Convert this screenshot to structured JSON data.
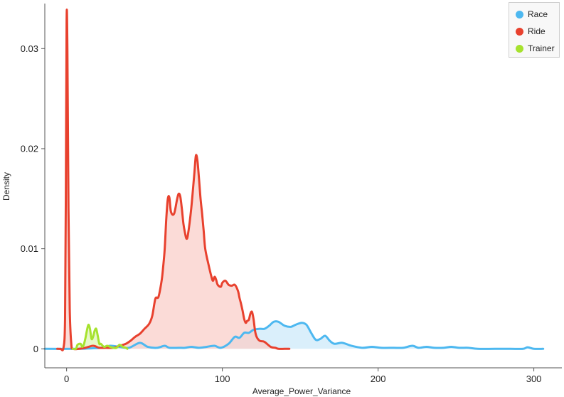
{
  "chart_data": {
    "type": "area",
    "xlabel": "Average_Power_Variance",
    "ylabel": "Density",
    "xlim": [
      -14,
      318
    ],
    "ylim": [
      -0.0019,
      0.0345
    ],
    "xticks": [
      0,
      100,
      200,
      300
    ],
    "yticks": [
      0,
      0.01,
      0.02,
      0.03
    ],
    "ytick_labels": [
      "0",
      "0.01",
      "0.02",
      "0.03"
    ],
    "legend_position": "top-right",
    "series": [
      {
        "name": "Race",
        "color": "#4db8f0",
        "fill": "#cdeaf9",
        "points": [
          [
            -14,
            0
          ],
          [
            8,
            0
          ],
          [
            16,
            5e-05
          ],
          [
            22,
            0.0001
          ],
          [
            28,
            0.0003
          ],
          [
            34,
            0.0002
          ],
          [
            40,
            0.0001
          ],
          [
            47,
            0.0006
          ],
          [
            52,
            0.0002
          ],
          [
            58,
            0.0001
          ],
          [
            63,
            0.0003
          ],
          [
            66,
            0.0001
          ],
          [
            72,
            0.0001
          ],
          [
            76,
            0.0001
          ],
          [
            80,
            0.0002
          ],
          [
            85,
            0.0001
          ],
          [
            90,
            0.0002
          ],
          [
            95,
            0.0003
          ],
          [
            99,
            0.0001
          ],
          [
            104,
            0.0005
          ],
          [
            108,
            0.0012
          ],
          [
            111,
            0.0011
          ],
          [
            114,
            0.0016
          ],
          [
            117,
            0.0016
          ],
          [
            120,
            0.0019
          ],
          [
            124,
            0.002
          ],
          [
            127,
            0.002
          ],
          [
            130,
            0.0023
          ],
          [
            133,
            0.0027
          ],
          [
            136,
            0.0027
          ],
          [
            140,
            0.0023
          ],
          [
            144,
            0.0022
          ],
          [
            147,
            0.0024
          ],
          [
            151,
            0.0026
          ],
          [
            154,
            0.0024
          ],
          [
            157,
            0.0016
          ],
          [
            160,
            0.0009
          ],
          [
            163,
            0.001
          ],
          [
            166,
            0.0013
          ],
          [
            169,
            0.0008
          ],
          [
            172,
            0.0005
          ],
          [
            177,
            0.0006
          ],
          [
            183,
            0.0003
          ],
          [
            190,
            0.0001
          ],
          [
            196,
            0.0002
          ],
          [
            202,
            0.0001
          ],
          [
            210,
            0.0001
          ],
          [
            216,
            0.0001
          ],
          [
            222,
            0.0003
          ],
          [
            226,
            0.0001
          ],
          [
            231,
            0.0002
          ],
          [
            236,
            0.0001
          ],
          [
            242,
            0.0001
          ],
          [
            247,
            0.0002
          ],
          [
            252,
            0.0001
          ],
          [
            258,
            0.0001
          ],
          [
            264,
            0
          ],
          [
            275,
            0
          ],
          [
            285,
            0
          ],
          [
            293,
            0
          ],
          [
            296,
            0.00015
          ],
          [
            300,
            0
          ],
          [
            306,
            0
          ]
        ]
      },
      {
        "name": "Ride",
        "color": "#e8412e",
        "fill": "#f9cfc9",
        "points": [
          [
            -6,
            0
          ],
          [
            -4,
            0
          ],
          [
            -2,
            0.0001
          ],
          [
            -1,
            0.003
          ],
          [
            -0.5,
            0.015
          ],
          [
            0,
            0.0328
          ],
          [
            0.5,
            0.03
          ],
          [
            1.2,
            0.014
          ],
          [
            2,
            0.004
          ],
          [
            3,
            0.0005
          ],
          [
            4,
            0
          ],
          [
            8,
            0
          ],
          [
            12,
            0.0001
          ],
          [
            17,
            0.0003
          ],
          [
            21,
            0.0001
          ],
          [
            25,
            0.0001
          ],
          [
            30,
            0.0001
          ],
          [
            34,
            0.0003
          ],
          [
            38,
            0.0005
          ],
          [
            41,
            0.0008
          ],
          [
            44,
            0.0012
          ],
          [
            47,
            0.0015
          ],
          [
            50,
            0.002
          ],
          [
            53,
            0.0025
          ],
          [
            55,
            0.0033
          ],
          [
            57,
            0.005
          ],
          [
            59,
            0.0052
          ],
          [
            61,
            0.0068
          ],
          [
            62,
            0.0082
          ],
          [
            63,
            0.01
          ],
          [
            64,
            0.013
          ],
          [
            65,
            0.015
          ],
          [
            66,
            0.0151
          ],
          [
            67,
            0.0137
          ],
          [
            69,
            0.0135
          ],
          [
            71,
            0.015
          ],
          [
            72,
            0.0155
          ],
          [
            73,
            0.0152
          ],
          [
            74,
            0.014
          ],
          [
            75,
            0.0125
          ],
          [
            76,
            0.0116
          ],
          [
            77,
            0.011
          ],
          [
            78,
            0.0115
          ],
          [
            80,
            0.014
          ],
          [
            82,
            0.0175
          ],
          [
            83,
            0.0193
          ],
          [
            84,
            0.0188
          ],
          [
            85,
            0.017
          ],
          [
            86,
            0.015
          ],
          [
            87,
            0.0135
          ],
          [
            88,
            0.0118
          ],
          [
            89,
            0.01
          ],
          [
            91,
            0.0085
          ],
          [
            93,
            0.0072
          ],
          [
            94,
            0.0068
          ],
          [
            95,
            0.0072
          ],
          [
            96,
            0.0069
          ],
          [
            97,
            0.0064
          ],
          [
            99,
            0.0062
          ],
          [
            100,
            0.0066
          ],
          [
            102,
            0.0068
          ],
          [
            104,
            0.0064
          ],
          [
            106,
            0.0063
          ],
          [
            108,
            0.0064
          ],
          [
            110,
            0.0058
          ],
          [
            111,
            0.0051
          ],
          [
            112,
            0.0045
          ],
          [
            113,
            0.0038
          ],
          [
            114,
            0.003
          ],
          [
            115,
            0.0026
          ],
          [
            116,
            0.0028
          ],
          [
            117,
            0.0029
          ],
          [
            118,
            0.0035
          ],
          [
            119,
            0.0037
          ],
          [
            120,
            0.003
          ],
          [
            121,
            0.0018
          ],
          [
            122,
            0.0012
          ],
          [
            124,
            0.0008
          ],
          [
            127,
            0.0007
          ],
          [
            131,
            0.0002
          ],
          [
            134,
            0.0001
          ],
          [
            136,
            0
          ],
          [
            140,
            0
          ],
          [
            143,
            0
          ]
        ]
      },
      {
        "name": "Trainer",
        "color": "#a6e22e",
        "fill": "#dff5b8",
        "points": [
          [
            4,
            0
          ],
          [
            6,
            0
          ],
          [
            7,
            0.0004
          ],
          [
            9,
            0.0005
          ],
          [
            10,
            0.0002
          ],
          [
            11,
            0.0004
          ],
          [
            12,
            0.001
          ],
          [
            13,
            0.0018
          ],
          [
            14,
            0.0024
          ],
          [
            15,
            0.002
          ],
          [
            16,
            0.001
          ],
          [
            17,
            0.0012
          ],
          [
            18,
            0.0018
          ],
          [
            19,
            0.002
          ],
          [
            20,
            0.0013
          ],
          [
            21,
            0.0005
          ],
          [
            22,
            0.0005
          ],
          [
            24,
            0.0002
          ],
          [
            26,
            0.0003
          ],
          [
            28,
            0.0002
          ],
          [
            30,
            0.0001
          ],
          [
            32,
            0.0001
          ],
          [
            34,
            0.0004
          ],
          [
            36,
            0.0002
          ],
          [
            38,
            0.0001
          ],
          [
            39,
            0
          ]
        ]
      }
    ]
  },
  "legend": {
    "items": [
      {
        "label": "Race",
        "color": "#4db8f0"
      },
      {
        "label": "Ride",
        "color": "#e8412e"
      },
      {
        "label": "Trainer",
        "color": "#a6e22e"
      }
    ]
  }
}
